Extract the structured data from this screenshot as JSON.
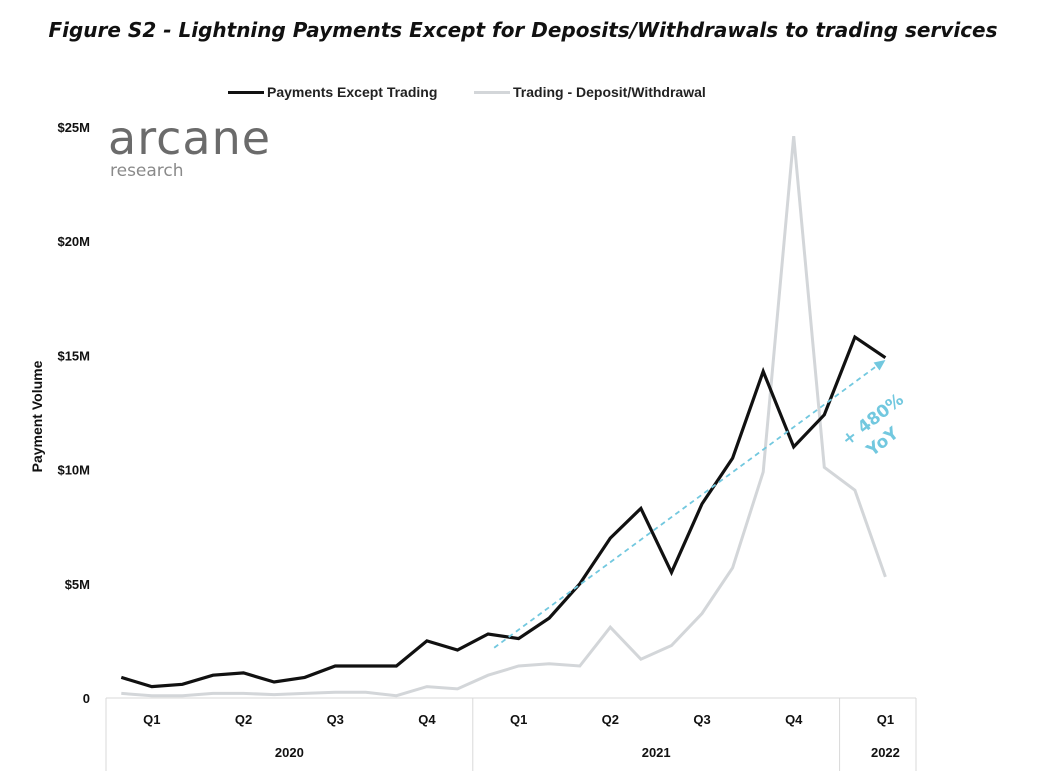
{
  "title": "Figure S2 - Lightning Payments Except for Deposits/Withdrawals to trading services",
  "logo": {
    "main": "arcane",
    "sub": "research"
  },
  "chart_data": {
    "type": "line",
    "title": "Figure S2 - Lightning Payments Except for Deposits/Withdrawals to trading services",
    "xlabel": "",
    "ylabel": "Payment Volume",
    "ylim": [
      0,
      25
    ],
    "y_unit": "millions USD",
    "y_ticks": [
      {
        "value": 0,
        "label": "0"
      },
      {
        "value": 5,
        "label": "$5M"
      },
      {
        "value": 10,
        "label": "$10M"
      },
      {
        "value": 15,
        "label": "$15M"
      },
      {
        "value": 20,
        "label": "$20M"
      },
      {
        "value": 25,
        "label": "$25M"
      }
    ],
    "x_quarters": [
      {
        "label": "Q1",
        "pos": 1.5
      },
      {
        "label": "Q2",
        "pos": 4.5
      },
      {
        "label": "Q3",
        "pos": 7.5
      },
      {
        "label": "Q4",
        "pos": 10.5
      },
      {
        "label": "Q1",
        "pos": 13.5
      },
      {
        "label": "Q2",
        "pos": 16.5
      },
      {
        "label": "Q3",
        "pos": 19.5
      },
      {
        "label": "Q4",
        "pos": 22.5
      },
      {
        "label": "Q1",
        "pos": 25.5
      }
    ],
    "x_years": [
      {
        "label": "2020",
        "pos": 6
      },
      {
        "label": "2021",
        "pos": 18
      },
      {
        "label": "2022",
        "pos": 25.5
      }
    ],
    "year_dividers": [
      0,
      12,
      24,
      26.5
    ],
    "x_range": [
      0,
      26.5
    ],
    "grid": false,
    "legend_position": "top-center",
    "series": [
      {
        "name": "Payments Except Trading",
        "color": "#111111",
        "x": [
          0.5,
          1.5,
          2.5,
          3.5,
          4.5,
          5.5,
          6.5,
          7.5,
          8.5,
          9.5,
          10.5,
          11.5,
          12.5,
          13.5,
          14.5,
          15.5,
          16.5,
          17.5,
          18.5,
          19.5,
          20.5,
          21.5,
          22.5,
          23.5,
          24.5,
          25.5
        ],
        "values": [
          0.9,
          0.5,
          0.6,
          1.0,
          1.1,
          0.7,
          0.9,
          1.4,
          1.4,
          1.4,
          2.5,
          2.1,
          2.8,
          2.6,
          3.5,
          5.0,
          7.0,
          8.3,
          5.5,
          8.5,
          10.5,
          14.3,
          11.0,
          12.4,
          15.8,
          14.9
        ]
      },
      {
        "name": "Trading - Deposit/Withdrawal",
        "color": "#d3d6d9",
        "x": [
          0.5,
          1.5,
          2.5,
          3.5,
          4.5,
          5.5,
          6.5,
          7.5,
          8.5,
          9.5,
          10.5,
          11.5,
          12.5,
          13.5,
          14.5,
          15.5,
          16.5,
          17.5,
          18.5,
          19.5,
          20.5,
          21.5,
          22.5,
          23.5,
          24.5,
          25.5
        ],
        "values": [
          0.2,
          0.1,
          0.1,
          0.2,
          0.2,
          0.15,
          0.2,
          0.25,
          0.25,
          0.1,
          0.5,
          0.4,
          1.0,
          1.4,
          1.5,
          1.4,
          3.1,
          1.7,
          2.3,
          3.7,
          5.7,
          9.9,
          24.6,
          10.1,
          9.1,
          5.3
        ]
      }
    ],
    "annotations": [
      {
        "text": "+ 480%",
        "sub": "YoY",
        "color": "#72c8df",
        "arrow_from": {
          "x": 12.7,
          "y": 2.2
        },
        "arrow_to": {
          "x": 25.5,
          "y": 14.8
        }
      }
    ]
  }
}
